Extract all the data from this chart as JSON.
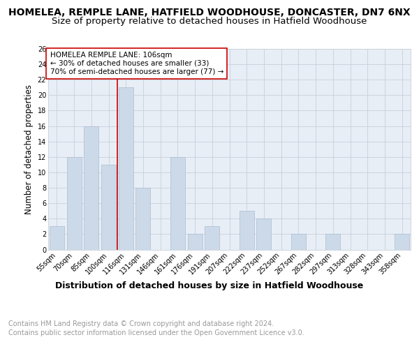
{
  "title": "HOMELEA, REMPLE LANE, HATFIELD WOODHOUSE, DONCASTER, DN7 6NX",
  "subtitle": "Size of property relative to detached houses in Hatfield Woodhouse",
  "xlabel": "Distribution of detached houses by size in Hatfield Woodhouse",
  "ylabel": "Number of detached properties",
  "footer_line1": "Contains HM Land Registry data © Crown copyright and database right 2024.",
  "footer_line2": "Contains public sector information licensed under the Open Government Licence v3.0.",
  "categories": [
    "55sqm",
    "70sqm",
    "85sqm",
    "100sqm",
    "116sqm",
    "131sqm",
    "146sqm",
    "161sqm",
    "176sqm",
    "191sqm",
    "207sqm",
    "222sqm",
    "237sqm",
    "252sqm",
    "267sqm",
    "282sqm",
    "297sqm",
    "313sqm",
    "328sqm",
    "343sqm",
    "358sqm"
  ],
  "values": [
    3,
    12,
    16,
    11,
    21,
    8,
    0,
    12,
    2,
    3,
    0,
    5,
    4,
    0,
    2,
    0,
    2,
    0,
    0,
    0,
    2
  ],
  "bar_color": "#ccd9e8",
  "bar_edgecolor": "#aabdd4",
  "vline_x": 3.5,
  "vline_color": "#cc0000",
  "annotation_text": "HOMELEA REMPLE LANE: 106sqm\n← 30% of detached houses are smaller (33)\n70% of semi-detached houses are larger (77) →",
  "annotation_box_edgecolor": "#cc0000",
  "annotation_box_facecolor": "#ffffff",
  "ylim": [
    0,
    26
  ],
  "yticks": [
    0,
    2,
    4,
    6,
    8,
    10,
    12,
    14,
    16,
    18,
    20,
    22,
    24,
    26
  ],
  "grid_color": "#c8d0dc",
  "bg_color": "#e8eef5",
  "title_fontsize": 10,
  "subtitle_fontsize": 9.5,
  "ylabel_fontsize": 8.5,
  "xlabel_fontsize": 9,
  "tick_fontsize": 7,
  "footer_fontsize": 7,
  "annotation_fontsize": 7.5
}
